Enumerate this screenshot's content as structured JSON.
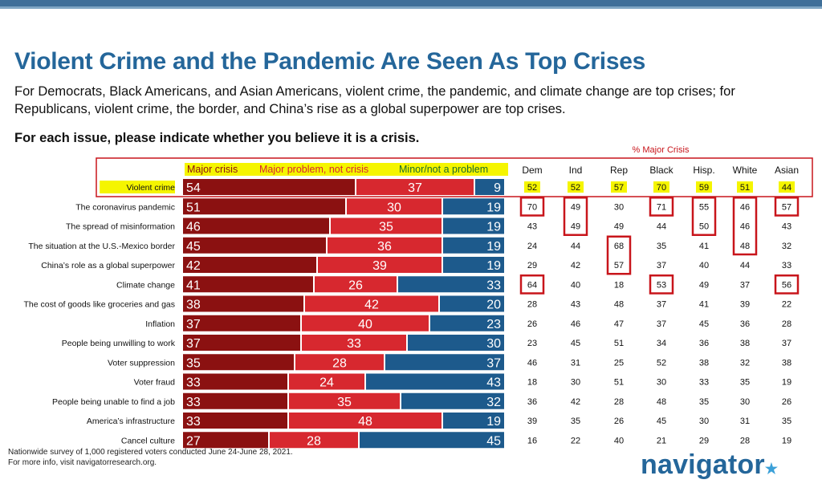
{
  "header": {
    "title": "Violent Crime and the Pandemic Are Seen As Top Crises",
    "subtitle": "For Democrats, Black Americans, and Asian Americans, violent crime, the pandemic, and climate change are top crises; for Republicans, violent crime, the border, and China’s rise as a global superpower are top crises.",
    "question": "For each issue, please indicate whether you believe it is a crisis."
  },
  "footer": {
    "note_line1": "Nationwide survey of 1,000 registered voters conducted June 24-June 28, 2021.",
    "note_line2": "For more info, visit navigatorresearch.org.",
    "logo_text": "navigator",
    "logo_mark": "★"
  },
  "colors": {
    "major_crisis": "#8b1111",
    "major_problem": "#d7282f",
    "minor": "#1d5a8c",
    "highlight_box": "#c8151b",
    "legend_highlight": "#f5f500",
    "title_blue": "#24669a"
  },
  "chart_data": {
    "type": "bar",
    "stacked": true,
    "orientation": "horizontal",
    "legend": [
      "Major crisis",
      "Major problem, not crisis",
      "Minor/not a problem"
    ],
    "legend_placement": "top",
    "categories": [
      "Violent crime",
      "The coronavirus pandemic",
      "The spread of misinformation",
      "The situation at the U.S.-Mexico border",
      "China’s role as a global superpower",
      "Climate change",
      "The cost of goods like groceries and gas",
      "Inflation",
      "People being unwilling to work",
      "Voter suppression",
      "Voter fraud",
      "People being unable to find a job",
      "America’s infrastructure",
      "Cancel culture"
    ],
    "series": [
      {
        "name": "Major crisis",
        "values": [
          54,
          51,
          46,
          45,
          42,
          41,
          38,
          37,
          37,
          35,
          33,
          33,
          33,
          27
        ]
      },
      {
        "name": "Major problem, not crisis",
        "values": [
          37,
          30,
          35,
          36,
          39,
          26,
          42,
          40,
          33,
          28,
          24,
          35,
          48,
          28
        ]
      },
      {
        "name": "Minor/not a problem",
        "values": [
          9,
          19,
          19,
          19,
          19,
          33,
          20,
          23,
          30,
          37,
          43,
          32,
          19,
          45
        ]
      }
    ],
    "table": {
      "title": "% Major Crisis",
      "columns": [
        "Dem",
        "Ind",
        "Rep",
        "Black",
        "Hisp.",
        "White",
        "Asian"
      ],
      "rows": [
        [
          52,
          52,
          57,
          70,
          59,
          51,
          44
        ],
        [
          70,
          49,
          30,
          71,
          55,
          46,
          57
        ],
        [
          43,
          49,
          49,
          44,
          50,
          46,
          43
        ],
        [
          24,
          44,
          68,
          35,
          41,
          48,
          32
        ],
        [
          29,
          42,
          57,
          37,
          40,
          44,
          33
        ],
        [
          64,
          40,
          18,
          53,
          49,
          37,
          56
        ],
        [
          28,
          43,
          48,
          37,
          41,
          39,
          22
        ],
        [
          26,
          46,
          47,
          37,
          45,
          36,
          28
        ],
        [
          23,
          45,
          51,
          34,
          36,
          38,
          37
        ],
        [
          46,
          31,
          25,
          52,
          38,
          32,
          38
        ],
        [
          18,
          30,
          51,
          30,
          33,
          35,
          19
        ],
        [
          36,
          42,
          28,
          48,
          35,
          30,
          26
        ],
        [
          39,
          35,
          26,
          45,
          30,
          31,
          35
        ],
        [
          16,
          22,
          40,
          21,
          29,
          28,
          19
        ]
      ],
      "highlight_groups": [
        {
          "column": 0,
          "rows": [
            1
          ]
        },
        {
          "column": 0,
          "rows": [
            5
          ]
        },
        {
          "column": 1,
          "rows": [
            1,
            2
          ]
        },
        {
          "column": 2,
          "rows": [
            3,
            4
          ]
        },
        {
          "column": 3,
          "rows": [
            1
          ]
        },
        {
          "column": 3,
          "rows": [
            5
          ]
        },
        {
          "column": 4,
          "rows": [
            1,
            2
          ]
        },
        {
          "column": 5,
          "rows": [
            1,
            2,
            3
          ]
        },
        {
          "column": 6,
          "rows": [
            1
          ]
        },
        {
          "column": 6,
          "rows": [
            5
          ]
        }
      ],
      "highlighted_row": 0
    }
  }
}
